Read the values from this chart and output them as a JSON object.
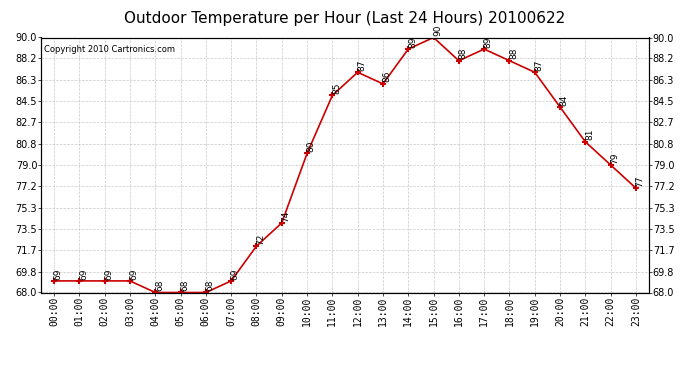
{
  "title": "Outdoor Temperature per Hour (Last 24 Hours) 20100622",
  "copyright": "Copyright 2010 Cartronics.com",
  "hours": [
    "00:00",
    "01:00",
    "02:00",
    "03:00",
    "04:00",
    "05:00",
    "06:00",
    "07:00",
    "08:00",
    "09:00",
    "10:00",
    "11:00",
    "12:00",
    "13:00",
    "14:00",
    "15:00",
    "16:00",
    "17:00",
    "18:00",
    "19:00",
    "20:00",
    "21:00",
    "22:00",
    "23:00"
  ],
  "values": [
    69,
    69,
    69,
    69,
    68,
    68,
    68,
    69,
    72,
    74,
    80,
    85,
    87,
    86,
    89,
    90,
    88,
    89,
    88,
    87,
    84,
    81,
    79,
    77
  ],
  "ylim": [
    68.0,
    90.0
  ],
  "yticks": [
    68.0,
    69.8,
    71.7,
    73.5,
    75.3,
    77.2,
    79.0,
    80.8,
    82.7,
    84.5,
    86.3,
    88.2,
    90.0
  ],
  "line_color": "#cc0000",
  "marker": "+",
  "marker_color": "#cc0000",
  "bg_color": "#ffffff",
  "grid_color": "#bbbbbb",
  "title_fontsize": 11,
  "label_fontsize": 7,
  "annotation_fontsize": 6.5
}
